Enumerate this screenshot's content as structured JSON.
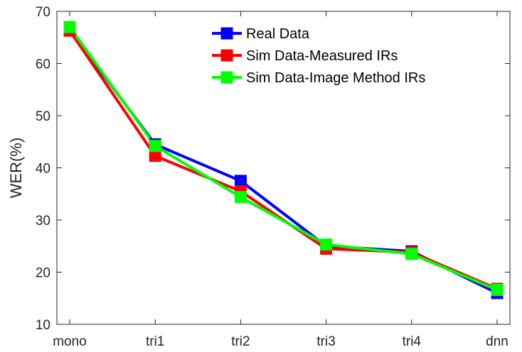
{
  "chart_data": {
    "type": "line",
    "title": "",
    "xlabel": "",
    "ylabel": "WER(%)",
    "categories": [
      "mono",
      "tri1",
      "tri2",
      "tri3",
      "tri4",
      "dnn"
    ],
    "ylim": [
      10,
      70
    ],
    "yticks": [
      10,
      20,
      30,
      40,
      50,
      60,
      70
    ],
    "grid": false,
    "legend_position": "top-right",
    "series": [
      {
        "name": "Real Data",
        "color": "#0000ff",
        "marker": "square",
        "values": [
          66.5,
          44.5,
          37.5,
          25.0,
          24.0,
          16.0
        ]
      },
      {
        "name": "Sim Data-Measured IRs",
        "color": "#ff0000",
        "marker": "square",
        "values": [
          66.3,
          42.3,
          35.5,
          24.5,
          23.8,
          16.8
        ]
      },
      {
        "name": "Sim Data-Image Method IRs",
        "color": "#00ff00",
        "marker": "square",
        "values": [
          67.0,
          44.2,
          34.4,
          25.3,
          23.5,
          16.6
        ]
      }
    ]
  }
}
